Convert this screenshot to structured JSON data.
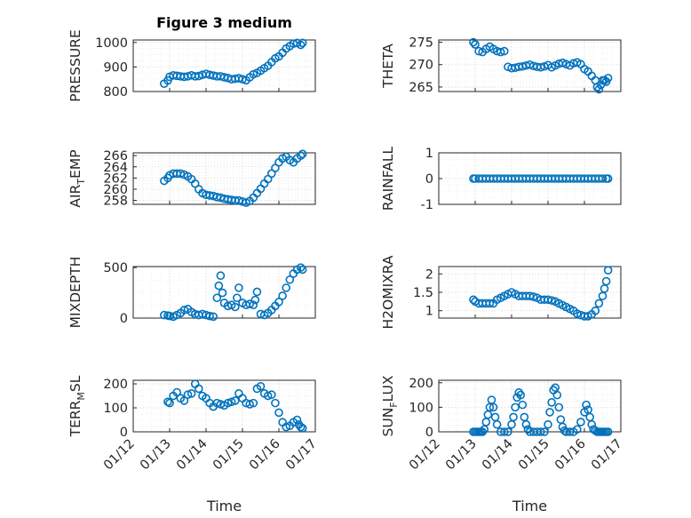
{
  "chart_data": [
    {
      "type": "scatter",
      "title": "Figure 3 medium",
      "ylabel": "PRESSURE",
      "ylabel_sub": "",
      "ylim": [
        800,
        1010
      ],
      "yticks": [
        800,
        900,
        1000
      ],
      "ytick_labels": [
        "800",
        "900",
        "1000"
      ],
      "xlabel": "",
      "x_tick_labels": [],
      "series": [
        {
          "x": [
            12.85,
            12.95,
            13.0,
            13.1,
            13.2,
            13.3,
            13.4,
            13.5,
            13.6,
            13.7,
            13.8,
            13.9,
            14.0,
            14.1,
            14.2,
            14.3,
            14.4,
            14.5,
            14.6,
            14.7,
            14.8,
            14.9,
            15.0,
            15.1,
            15.2,
            15.3,
            15.4,
            15.5,
            15.6,
            15.7,
            15.8,
            15.9,
            16.0,
            16.1,
            16.2,
            16.3,
            16.4,
            16.5,
            16.6,
            16.65
          ],
          "values": [
            832,
            845,
            860,
            866,
            864,
            862,
            860,
            862,
            866,
            862,
            863,
            868,
            872,
            868,
            865,
            862,
            862,
            858,
            855,
            850,
            852,
            854,
            850,
            846,
            858,
            870,
            876,
            885,
            895,
            905,
            920,
            935,
            943,
            958,
            975,
            985,
            995,
            998,
            990,
            998
          ]
        }
      ]
    },
    {
      "type": "scatter",
      "title": "",
      "ylabel": "THETA",
      "ylabel_sub": "",
      "ylim": [
        264,
        275.5
      ],
      "yticks": [
        265,
        270,
        275
      ],
      "ytick_labels": [
        "265",
        "270",
        "275"
      ],
      "xlabel": "",
      "x_tick_labels": [],
      "series": [
        {
          "x": [
            12.95,
            13.0,
            13.1,
            13.2,
            13.3,
            13.4,
            13.5,
            13.6,
            13.7,
            13.8,
            13.9,
            14.0,
            14.1,
            14.2,
            14.3,
            14.4,
            14.5,
            14.6,
            14.7,
            14.8,
            14.9,
            15.0,
            15.1,
            15.2,
            15.3,
            15.4,
            15.5,
            15.6,
            15.7,
            15.8,
            15.9,
            16.0,
            16.1,
            16.2,
            16.3,
            16.35,
            16.4,
            16.45,
            16.5,
            16.55,
            16.6,
            16.65
          ],
          "values": [
            275,
            274.5,
            273,
            272.8,
            273.5,
            274,
            273.5,
            273,
            272.8,
            273,
            269.5,
            269.2,
            269.3,
            269.5,
            269.6,
            269.8,
            270,
            269.7,
            269.5,
            269.4,
            269.6,
            269.9,
            269.4,
            269.8,
            270.2,
            270.4,
            270.1,
            269.8,
            270.3,
            270.5,
            270.1,
            269,
            268.5,
            267.5,
            266.5,
            265,
            264.5,
            265.5,
            266.5,
            266.5,
            266.2,
            267
          ]
        }
      ]
    },
    {
      "type": "scatter",
      "title": "",
      "ylabel": "AIR",
      "ylabel_sub": "T",
      "ylabel_suffix": "EMP",
      "ylim": [
        257.3,
        266.5
      ],
      "yticks": [
        258,
        260,
        262,
        264,
        266
      ],
      "ytick_labels": [
        "258",
        "260",
        "262",
        "264",
        "266"
      ],
      "xlabel": "",
      "x_tick_labels": [],
      "series": [
        {
          "x": [
            12.85,
            12.95,
            13.0,
            13.1,
            13.2,
            13.3,
            13.4,
            13.5,
            13.6,
            13.7,
            13.8,
            13.9,
            14.0,
            14.1,
            14.2,
            14.3,
            14.4,
            14.5,
            14.6,
            14.7,
            14.8,
            14.9,
            15.0,
            15.1,
            15.2,
            15.3,
            15.4,
            15.5,
            15.6,
            15.7,
            15.8,
            15.9,
            16.0,
            16.1,
            16.2,
            16.3,
            16.4,
            16.5,
            16.6,
            16.65
          ],
          "values": [
            261.5,
            262,
            262.5,
            262.8,
            262.8,
            262.8,
            262.6,
            262.3,
            261.8,
            261,
            260,
            259.3,
            259,
            258.9,
            258.8,
            258.6,
            258.5,
            258.3,
            258.2,
            258.1,
            258,
            258,
            257.8,
            257.6,
            257.9,
            258.5,
            259.3,
            260.1,
            261,
            261.8,
            262.8,
            263.8,
            264.8,
            265.5,
            265.8,
            265.2,
            264.8,
            265.5,
            266,
            266.3
          ]
        }
      ]
    },
    {
      "type": "scatter",
      "title": "",
      "ylabel": "RAINFALL",
      "ylabel_sub": "",
      "ylim": [
        -1,
        1
      ],
      "yticks": [
        -1,
        0,
        1
      ],
      "ytick_labels": [
        "-1",
        "0",
        "1"
      ],
      "xlabel": "",
      "x_tick_labels": [],
      "series": [
        {
          "x": [
            12.95,
            13.0,
            13.1,
            13.2,
            13.3,
            13.4,
            13.5,
            13.6,
            13.7,
            13.8,
            13.9,
            14.0,
            14.1,
            14.2,
            14.3,
            14.4,
            14.5,
            14.6,
            14.7,
            14.8,
            14.9,
            15.0,
            15.1,
            15.2,
            15.3,
            15.4,
            15.5,
            15.6,
            15.7,
            15.8,
            15.9,
            16.0,
            16.1,
            16.2,
            16.3,
            16.4,
            16.5,
            16.6,
            16.65
          ],
          "values": [
            0,
            0,
            0,
            0,
            0,
            0,
            0,
            0,
            0,
            0,
            0,
            0,
            0,
            0,
            0,
            0,
            0,
            0,
            0,
            0,
            0,
            0,
            0,
            0,
            0,
            0,
            0,
            0,
            0,
            0,
            0,
            0,
            0,
            0,
            0,
            0,
            0,
            0,
            0
          ]
        }
      ]
    },
    {
      "type": "scatter",
      "title": "",
      "ylabel": "MIXDEPTH",
      "ylabel_sub": "",
      "ylim": [
        0,
        510
      ],
      "yticks": [
        0,
        500
      ],
      "ytick_labels": [
        "0",
        "500"
      ],
      "xlabel": "",
      "x_tick_labels": [],
      "series": [
        {
          "x": [
            12.85,
            12.95,
            13.0,
            13.1,
            13.2,
            13.3,
            13.4,
            13.5,
            13.6,
            13.7,
            13.8,
            13.9,
            14.0,
            14.1,
            14.2,
            14.3,
            14.35,
            14.4,
            14.45,
            14.5,
            14.6,
            14.7,
            14.8,
            14.85,
            14.9,
            15.0,
            15.1,
            15.2,
            15.3,
            15.35,
            15.4,
            15.5,
            15.6,
            15.7,
            15.8,
            15.9,
            16.0,
            16.1,
            16.2,
            16.3,
            16.4,
            16.5,
            16.6,
            16.65
          ],
          "values": [
            30,
            25,
            20,
            15,
            30,
            50,
            80,
            90,
            60,
            40,
            30,
            40,
            30,
            20,
            15,
            200,
            320,
            420,
            250,
            150,
            120,
            130,
            110,
            200,
            300,
            150,
            130,
            140,
            130,
            180,
            260,
            40,
            30,
            50,
            80,
            120,
            160,
            220,
            300,
            380,
            440,
            480,
            500,
            480
          ]
        }
      ]
    },
    {
      "type": "scatter",
      "title": "",
      "ylabel": "H2OMIXRA",
      "ylabel_sub": "",
      "ylim": [
        0.8,
        2.2
      ],
      "yticks": [
        1,
        1.5,
        2
      ],
      "ytick_labels": [
        "1",
        "1.5",
        "2"
      ],
      "xlabel": "",
      "x_tick_labels": [],
      "series": [
        {
          "x": [
            12.95,
            13.0,
            13.1,
            13.2,
            13.3,
            13.4,
            13.5,
            13.6,
            13.7,
            13.8,
            13.9,
            14.0,
            14.1,
            14.2,
            14.3,
            14.4,
            14.5,
            14.6,
            14.7,
            14.8,
            14.9,
            15.0,
            15.1,
            15.2,
            15.3,
            15.4,
            15.5,
            15.6,
            15.7,
            15.8,
            15.9,
            16.0,
            16.1,
            16.2,
            16.3,
            16.4,
            16.5,
            16.55,
            16.6,
            16.65
          ],
          "values": [
            1.3,
            1.25,
            1.2,
            1.2,
            1.2,
            1.2,
            1.2,
            1.3,
            1.35,
            1.4,
            1.45,
            1.5,
            1.45,
            1.4,
            1.4,
            1.4,
            1.4,
            1.38,
            1.35,
            1.3,
            1.3,
            1.3,
            1.28,
            1.25,
            1.2,
            1.15,
            1.1,
            1.05,
            1.0,
            0.92,
            0.88,
            0.85,
            0.85,
            0.9,
            1.0,
            1.2,
            1.4,
            1.6,
            1.8,
            2.1
          ]
        }
      ]
    },
    {
      "type": "scatter",
      "title": "",
      "ylabel": "TERR",
      "ylabel_sub": "M",
      "ylabel_suffix": "SL",
      "ylim": [
        0,
        215
      ],
      "yticks": [
        0,
        100,
        200
      ],
      "ytick_labels": [
        "0",
        "100",
        "200"
      ],
      "xlabel": "Time",
      "x_tick_labels": [
        "01/12",
        "01/13",
        "01/14",
        "01/15",
        "01/16",
        "01/17"
      ],
      "series": [
        {
          "x": [
            12.95,
            13.0,
            13.1,
            13.2,
            13.3,
            13.4,
            13.5,
            13.6,
            13.7,
            13.8,
            13.9,
            14.0,
            14.1,
            14.2,
            14.3,
            14.4,
            14.5,
            14.6,
            14.7,
            14.8,
            14.9,
            15.0,
            15.1,
            15.2,
            15.3,
            15.4,
            15.5,
            15.6,
            15.7,
            15.8,
            15.9,
            16.0,
            16.1,
            16.2,
            16.3,
            16.4,
            16.5,
            16.55,
            16.6,
            16.65
          ],
          "values": [
            125,
            120,
            150,
            165,
            140,
            130,
            155,
            160,
            200,
            180,
            150,
            140,
            120,
            105,
            120,
            115,
            110,
            120,
            125,
            130,
            160,
            140,
            120,
            115,
            120,
            180,
            190,
            160,
            150,
            155,
            120,
            80,
            40,
            20,
            25,
            40,
            50,
            30,
            20,
            15
          ]
        }
      ]
    },
    {
      "type": "scatter",
      "title": "",
      "ylabel": "SUN",
      "ylabel_sub": "F",
      "ylabel_suffix": "LUX",
      "ylim": [
        0,
        210
      ],
      "yticks": [
        0,
        100,
        200
      ],
      "ytick_labels": [
        "0",
        "100",
        "200"
      ],
      "xlabel": "Time",
      "x_tick_labels": [
        "01/12",
        "01/13",
        "01/14",
        "01/15",
        "01/16",
        "01/17"
      ],
      "series": [
        {
          "x": [
            12.95,
            13.0,
            13.05,
            13.1,
            13.15,
            13.2,
            13.25,
            13.3,
            13.35,
            13.4,
            13.45,
            13.5,
            13.55,
            13.6,
            13.7,
            13.8,
            13.9,
            14.0,
            14.05,
            14.1,
            14.15,
            14.2,
            14.25,
            14.3,
            14.35,
            14.4,
            14.45,
            14.5,
            14.6,
            14.7,
            14.8,
            14.9,
            15.0,
            15.05,
            15.1,
            15.15,
            15.2,
            15.25,
            15.3,
            15.35,
            15.4,
            15.45,
            15.5,
            15.6,
            15.7,
            15.8,
            15.9,
            16.0,
            16.05,
            16.1,
            16.15,
            16.2,
            16.25,
            16.3,
            16.35,
            16.4,
            16.45,
            16.5,
            16.55,
            16.6,
            16.65
          ],
          "values": [
            0,
            0,
            0,
            0,
            0,
            0,
            10,
            40,
            70,
            100,
            130,
            100,
            60,
            30,
            0,
            0,
            0,
            30,
            60,
            100,
            140,
            160,
            150,
            110,
            60,
            30,
            10,
            0,
            0,
            0,
            0,
            0,
            30,
            80,
            120,
            170,
            180,
            150,
            100,
            50,
            20,
            5,
            0,
            0,
            0,
            10,
            40,
            80,
            110,
            90,
            60,
            30,
            10,
            5,
            0,
            0,
            0,
            0,
            0,
            0,
            0
          ]
        }
      ]
    }
  ],
  "colors": {
    "marker": "#0072BD",
    "axis": "#262626",
    "grid": "#d9d9d9"
  }
}
